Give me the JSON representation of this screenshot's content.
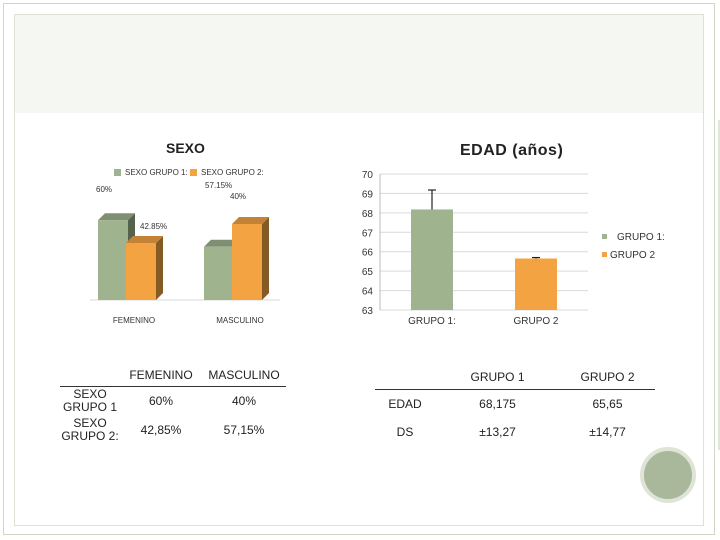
{
  "colors": {
    "grupo1": "#9fb38e",
    "grupo2": "#f4a342",
    "frame": "#cfd8c4",
    "circle": "#a9b79a"
  },
  "chart_data": [
    {
      "type": "bar",
      "title": "SEXO",
      "categories": [
        "FEMENINO",
        "MASCULINO"
      ],
      "series": [
        {
          "name": "SEXO GRUPO 1:",
          "values": [
            60,
            40
          ],
          "labels": [
            "60%",
            "40%"
          ]
        },
        {
          "name": "SEXO GRUPO 2:",
          "values": [
            42.85,
            57.15
          ],
          "labels": [
            "42.85%",
            "57.15%"
          ]
        }
      ],
      "ylim": [
        0,
        70
      ],
      "legend": "top"
    },
    {
      "type": "bar",
      "title": "EDAD (años)",
      "categories": [
        "GRUPO 1:",
        "GRUPO 2"
      ],
      "values": [
        68.175,
        65.65
      ],
      "error": [
        1.0,
        0.05
      ],
      "series_names": [
        "GRUPO 1:",
        "GRUPO 2"
      ],
      "ylim": [
        63,
        70
      ],
      "yticks": [
        63,
        64,
        65,
        66,
        67,
        68,
        69,
        70
      ],
      "grid": true,
      "legend": "right"
    }
  ],
  "table_sexo": {
    "headers": [
      "",
      "FEMENINO",
      "MASCULINO"
    ],
    "rows": [
      {
        "label": "SEXO GRUPO 1",
        "cells": [
          "60%",
          "40%"
        ]
      },
      {
        "label": "SEXO GRUPO 2:",
        "cells": [
          "42,85%",
          "57,15%"
        ]
      }
    ]
  },
  "table_edad": {
    "headers": [
      "",
      "GRUPO 1",
      "GRUPO 2"
    ],
    "rows": [
      {
        "label": "EDAD",
        "cells": [
          "68,175",
          "65,65"
        ]
      },
      {
        "label": "DS",
        "cells": [
          "±13,27",
          "±14,77"
        ]
      }
    ]
  }
}
